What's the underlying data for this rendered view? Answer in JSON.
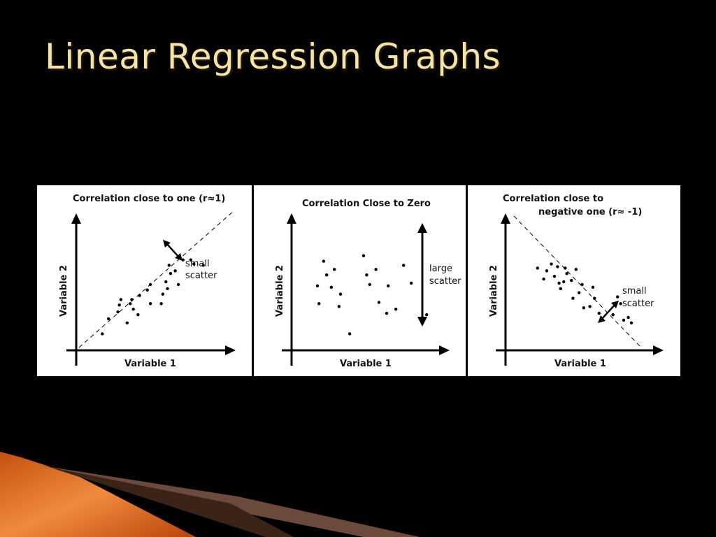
{
  "slide": {
    "title": "Linear Regression Graphs"
  },
  "colors": {
    "title": "#f6e3a8",
    "background": "#000000",
    "panel": "#ffffff",
    "accent_orange": "#e8741f",
    "accent_brown": "#6b4a3d"
  },
  "chart_data": [
    {
      "type": "scatter",
      "title_lines": [
        "Correlation close to one (r≈1)"
      ],
      "xlabel": "Variable 1",
      "ylabel": "Variable 2",
      "annotation": [
        "small",
        "scatter"
      ],
      "trend_line": "positive-dashed",
      "points": [
        [
          1.5,
          1.2
        ],
        [
          1.9,
          2.3
        ],
        [
          2.5,
          2.8
        ],
        [
          2.6,
          3.3
        ],
        [
          2.7,
          3.7
        ],
        [
          3.1,
          2.0
        ],
        [
          3.3,
          3.4
        ],
        [
          3.5,
          3.0
        ],
        [
          3.4,
          3.7
        ],
        [
          3.8,
          2.6
        ],
        [
          3.9,
          4.0
        ],
        [
          4.6,
          3.4
        ],
        [
          4.4,
          4.4
        ],
        [
          4.6,
          4.8
        ],
        [
          5.3,
          3.4
        ],
        [
          5.4,
          4.1
        ],
        [
          5.7,
          4.5
        ],
        [
          5.6,
          5.0
        ],
        [
          5.9,
          5.6
        ],
        [
          5.8,
          6.2
        ],
        [
          6.2,
          5.8
        ],
        [
          6.4,
          4.8
        ],
        [
          6.7,
          6.6
        ],
        [
          7.2,
          6.6
        ],
        [
          7.4,
          6.3
        ],
        [
          8.0,
          6.2
        ]
      ]
    },
    {
      "type": "scatter",
      "title_lines": [
        "Correlation Close to Zero"
      ],
      "xlabel": "Variable 1",
      "ylabel": "Variable 2",
      "annotation": [
        "large",
        "scatter"
      ],
      "points": [
        [
          1.5,
          4.7
        ],
        [
          1.6,
          3.4
        ],
        [
          1.9,
          6.5
        ],
        [
          2.1,
          5.5
        ],
        [
          2.6,
          5.9
        ],
        [
          2.4,
          4.6
        ],
        [
          2.9,
          3.2
        ],
        [
          3.0,
          4.1
        ],
        [
          3.6,
          1.2
        ],
        [
          4.5,
          6.9
        ],
        [
          4.9,
          4.8
        ],
        [
          4.7,
          5.5
        ],
        [
          5.3,
          5.9
        ],
        [
          5.5,
          3.5
        ],
        [
          6.0,
          2.7
        ],
        [
          6.1,
          4.7
        ],
        [
          6.6,
          3.0
        ],
        [
          7.1,
          6.2
        ],
        [
          7.6,
          4.9
        ],
        [
          8.6,
          2.6
        ]
      ]
    },
    {
      "type": "scatter",
      "title_lines": [
        "Correlation close to",
        "negative one (r≈ -1)"
      ],
      "xlabel": "Variable 1",
      "ylabel": "Variable 2",
      "annotation": [
        "small",
        "scatter"
      ],
      "trend_line": "negative-dashed",
      "points": [
        [
          1.9,
          6.0
        ],
        [
          2.3,
          5.2
        ],
        [
          2.5,
          5.8
        ],
        [
          2.8,
          6.3
        ],
        [
          3.0,
          5.4
        ],
        [
          3.2,
          6.1
        ],
        [
          3.3,
          4.9
        ],
        [
          3.4,
          4.5
        ],
        [
          3.6,
          5.0
        ],
        [
          3.7,
          6.0
        ],
        [
          3.8,
          5.6
        ],
        [
          4.1,
          5.1
        ],
        [
          4.2,
          3.8
        ],
        [
          4.4,
          5.9
        ],
        [
          4.6,
          4.2
        ],
        [
          4.8,
          4.8
        ],
        [
          4.9,
          3.1
        ],
        [
          5.3,
          3.2
        ],
        [
          5.5,
          4.6
        ],
        [
          5.6,
          3.8
        ],
        [
          5.9,
          2.7
        ],
        [
          6.8,
          2.6
        ],
        [
          7.1,
          3.9
        ],
        [
          7.3,
          3.4
        ],
        [
          7.5,
          2.2
        ],
        [
          7.8,
          2.4
        ],
        [
          8.0,
          2.0
        ]
      ]
    }
  ]
}
